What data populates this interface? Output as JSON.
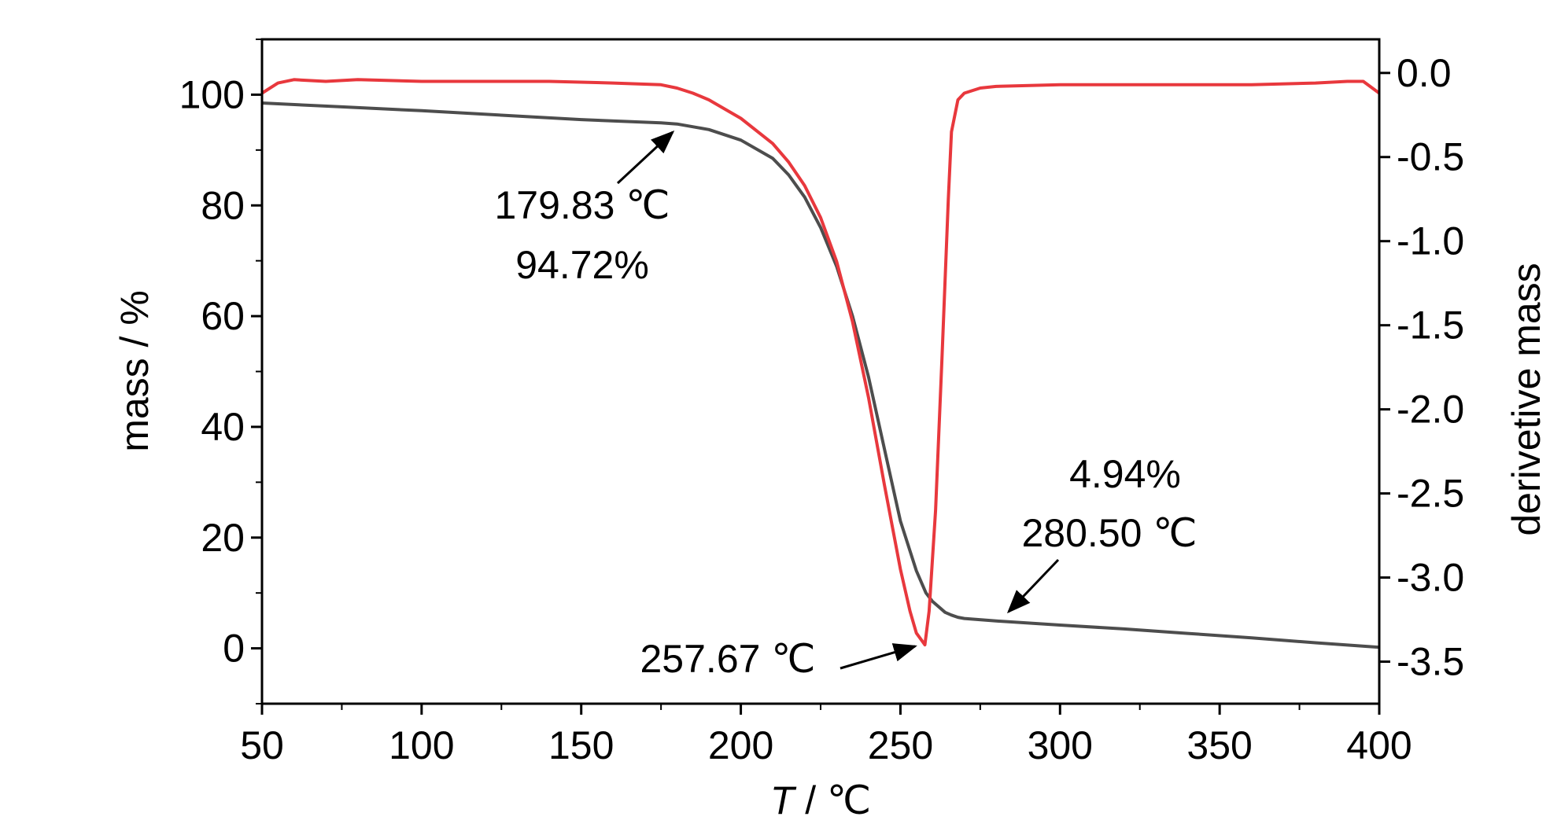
{
  "chart_data": {
    "type": "line",
    "title": "",
    "xlabel_italic": "T",
    "xlabel_rest": " / ℃",
    "ylabel_left": "mass / %",
    "ylabel_right": "derivetive mass",
    "xlim": [
      50,
      400
    ],
    "ylim_left": [
      -10,
      110
    ],
    "ylim_right": [
      -3.75,
      0.2
    ],
    "x_ticks": [
      50,
      100,
      150,
      200,
      250,
      300,
      350,
      400
    ],
    "x_tick_labels": [
      "50",
      "100",
      "150",
      "200",
      "250",
      "300",
      "350",
      "400"
    ],
    "y_left_ticks": [
      0,
      20,
      40,
      60,
      80,
      100
    ],
    "y_left_tick_labels": [
      "0",
      "20",
      "40",
      "60",
      "80",
      "100"
    ],
    "y_right_ticks": [
      0.0,
      -0.5,
      -1.0,
      -1.5,
      -2.0,
      -2.5,
      -3.0,
      -3.5
    ],
    "y_right_tick_labels": [
      "0.0",
      "-0.5",
      "-1.0",
      "-1.5",
      "-2.0",
      "-2.5",
      "-3.0",
      "-3.5"
    ],
    "grid": false,
    "legend": "none",
    "series": [
      {
        "axis": "left",
        "color": "#4d4d4d",
        "x": [
          50,
          75,
          100,
          125,
          150,
          175,
          180,
          190,
          200,
          210,
          215,
          220,
          225,
          230,
          235,
          240,
          245,
          250,
          255,
          258,
          260,
          262,
          264,
          266,
          268,
          270,
          280,
          300,
          320,
          340,
          360,
          380,
          400
        ],
        "y": [
          98.5,
          97.8,
          97.1,
          96.3,
          95.5,
          94.9,
          94.7,
          93.7,
          91.8,
          88.5,
          85.5,
          81.5,
          76,
          69,
          60,
          49,
          36,
          23,
          14,
          10,
          8.5,
          7.5,
          6.5,
          6,
          5.6,
          5.4,
          4.94,
          4.2,
          3.5,
          2.7,
          1.9,
          1.0,
          0.2
        ]
      },
      {
        "axis": "right",
        "color": "#e8383d",
        "x": [
          50,
          55,
          60,
          70,
          80,
          100,
          120,
          140,
          160,
          175,
          180,
          185,
          190,
          200,
          210,
          215,
          220,
          225,
          230,
          235,
          240,
          245,
          250,
          253,
          255,
          257.67,
          259,
          261,
          263,
          265,
          266,
          268,
          270,
          275,
          280,
          300,
          320,
          340,
          360,
          380,
          390,
          395,
          400
        ],
        "y": [
          -0.12,
          -0.06,
          -0.04,
          -0.05,
          -0.04,
          -0.05,
          -0.05,
          -0.05,
          -0.06,
          -0.07,
          -0.09,
          -0.12,
          -0.16,
          -0.27,
          -0.42,
          -0.53,
          -0.67,
          -0.86,
          -1.12,
          -1.48,
          -1.93,
          -2.45,
          -2.95,
          -3.2,
          -3.33,
          -3.4,
          -3.2,
          -2.6,
          -1.7,
          -0.75,
          -0.35,
          -0.16,
          -0.12,
          -0.09,
          -0.08,
          -0.07,
          -0.07,
          -0.07,
          -0.07,
          -0.06,
          -0.05,
          -0.05,
          -0.12
        ]
      }
    ],
    "annotations": [
      {
        "lines": [
          "179.83 ℃",
          "94.72%"
        ]
      },
      {
        "lines": [
          "257.67 ℃"
        ]
      },
      {
        "lines": [
          "4.94%",
          "280.50 ℃"
        ]
      }
    ]
  }
}
